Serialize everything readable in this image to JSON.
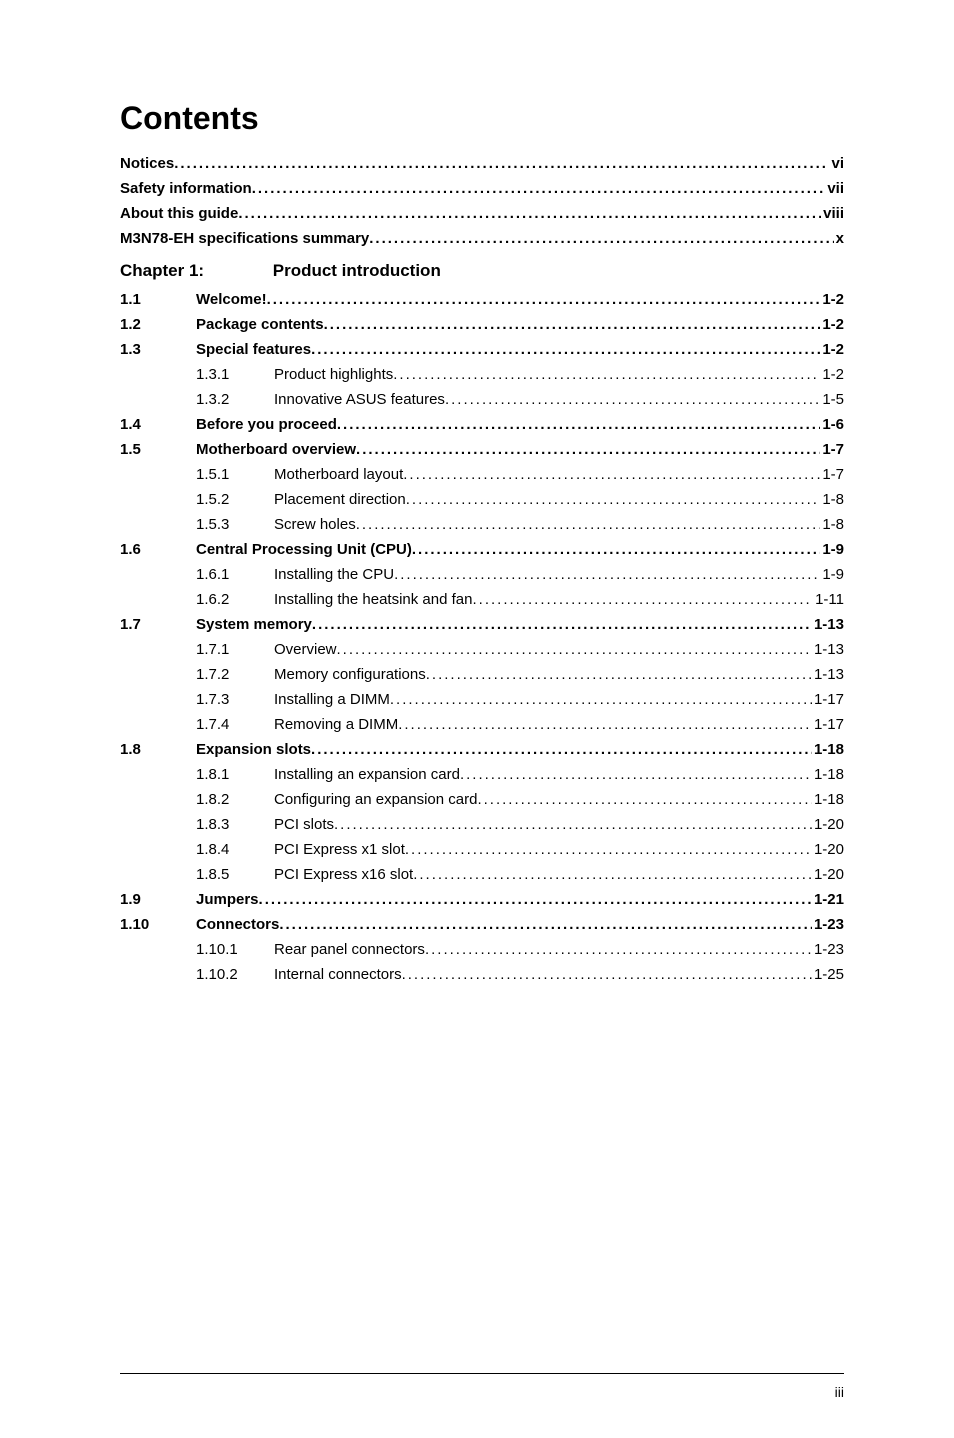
{
  "title": "Contents",
  "front_matter": [
    {
      "label": "Notices",
      "page": "vi"
    },
    {
      "label": "Safety information",
      "page": "vii"
    },
    {
      "label": "About this guide",
      "page": "viii"
    },
    {
      "label": "M3N78-EH specifications summary",
      "page": "x"
    }
  ],
  "chapter": {
    "label": "Chapter 1:",
    "title": "Product introduction"
  },
  "entries": [
    {
      "level": 1,
      "bold": true,
      "num": "1.1",
      "label": "Welcome!",
      "page": "1-2"
    },
    {
      "level": 1,
      "bold": true,
      "num": "1.2",
      "label": "Package contents",
      "page": "1-2"
    },
    {
      "level": 1,
      "bold": true,
      "num": "1.3",
      "label": "Special features",
      "page": "1-2"
    },
    {
      "level": 2,
      "bold": false,
      "num": "1.3.1",
      "label": "Product highlights",
      "page": "1-2"
    },
    {
      "level": 2,
      "bold": false,
      "num": "1.3.2",
      "label": "Innovative ASUS features",
      "page": "1-5"
    },
    {
      "level": 1,
      "bold": true,
      "num": "1.4",
      "label": "Before you proceed",
      "page": "1-6"
    },
    {
      "level": 1,
      "bold": true,
      "num": "1.5",
      "label": "Motherboard overview",
      "page": "1-7"
    },
    {
      "level": 2,
      "bold": false,
      "num": "1.5.1",
      "label": "Motherboard layout",
      "page": "1-7"
    },
    {
      "level": 2,
      "bold": false,
      "num": "1.5.2",
      "label": "Placement direction",
      "page": "1-8"
    },
    {
      "level": 2,
      "bold": false,
      "num": "1.5.3",
      "label": "Screw holes",
      "page": "1-8"
    },
    {
      "level": 1,
      "bold": true,
      "num": "1.6",
      "label": "Central Processing Unit (CPU)",
      "page": "1-9"
    },
    {
      "level": 2,
      "bold": false,
      "num": "1.6.1",
      "label": "Installing the CPU",
      "page": "1-9"
    },
    {
      "level": 2,
      "bold": false,
      "num": "1.6.2",
      "label": "Installing the heatsink and fan",
      "page": "1-11"
    },
    {
      "level": 1,
      "bold": true,
      "num": "1.7",
      "label": "System memory",
      "page": "1-13"
    },
    {
      "level": 2,
      "bold": false,
      "num": "1.7.1",
      "label": "Overview",
      "page": "1-13"
    },
    {
      "level": 2,
      "bold": false,
      "num": "1.7.2",
      "label": "Memory configurations",
      "page": "1-13"
    },
    {
      "level": 2,
      "bold": false,
      "num": "1.7.3",
      "label": "Installing a DIMM",
      "page": "1-17"
    },
    {
      "level": 2,
      "bold": false,
      "num": "1.7.4",
      "label": "Removing a DIMM",
      "page": "1-17"
    },
    {
      "level": 1,
      "bold": true,
      "num": "1.8",
      "label": "Expansion slots",
      "page": "1-18"
    },
    {
      "level": 2,
      "bold": false,
      "num": "1.8.1",
      "label": "Installing an expansion card",
      "page": "1-18"
    },
    {
      "level": 2,
      "bold": false,
      "num": "1.8.2",
      "label": "Configuring an expansion card",
      "page": "1-18"
    },
    {
      "level": 2,
      "bold": false,
      "num": "1.8.3",
      "label": "PCI slots",
      "page": "1-20"
    },
    {
      "level": 2,
      "bold": false,
      "num": "1.8.4",
      "label": "PCI Express x1 slot",
      "page": "1-20"
    },
    {
      "level": 2,
      "bold": false,
      "num": "1.8.5",
      "label": "PCI Express x16 slot",
      "page": "1-20"
    },
    {
      "level": 1,
      "bold": true,
      "num": "1.9",
      "label": "Jumpers",
      "page": "1-21"
    },
    {
      "level": 1,
      "bold": true,
      "num": "1.10",
      "label": "Connectors",
      "page": "1-23"
    },
    {
      "level": 2,
      "bold": false,
      "num": "1.10.1",
      "label": "Rear panel connectors",
      "page": "1-23"
    },
    {
      "level": 2,
      "bold": false,
      "num": "1.10.2",
      "label": "Internal connectors",
      "page": "1-25"
    }
  ],
  "footer": {
    "page_number": "iii"
  }
}
